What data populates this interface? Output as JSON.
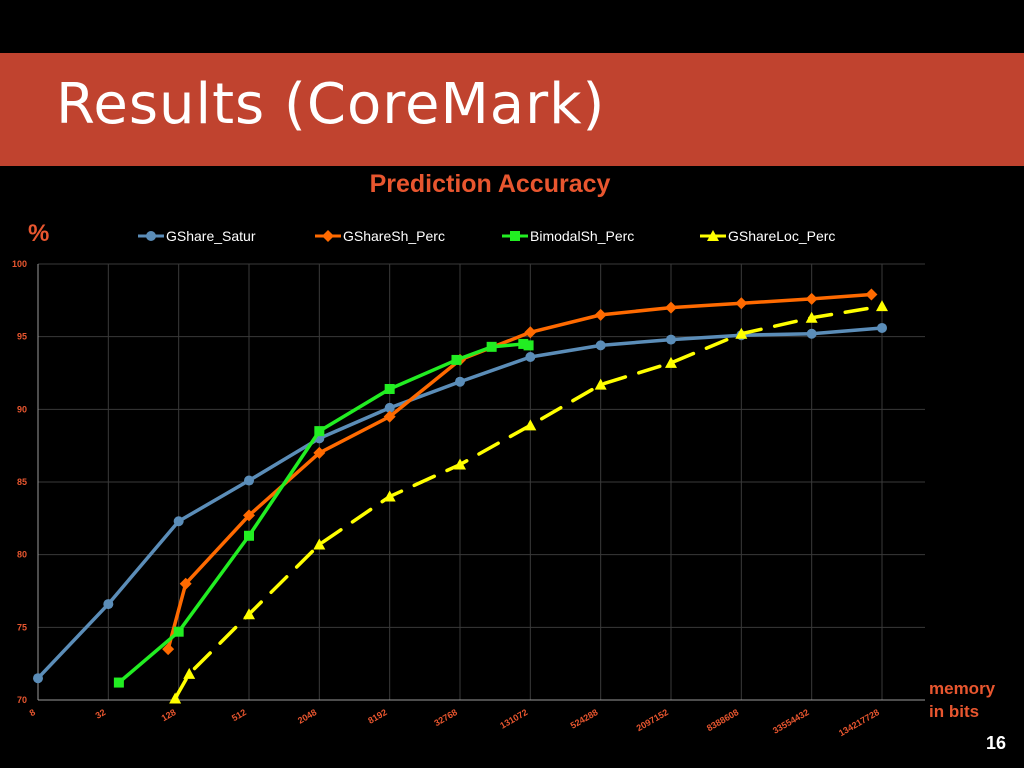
{
  "slide": {
    "title": "Results (CoreMark)",
    "page_number": "16"
  },
  "chart_data": {
    "type": "line",
    "title": "Prediction Accuracy",
    "ylabel": "%",
    "xlabel_line1": "memory",
    "xlabel_line2": "in bits",
    "x_scale": "log2",
    "ylim": [
      70,
      100
    ],
    "yticks": [
      "70",
      "75",
      "80",
      "85",
      "90",
      "95",
      "100"
    ],
    "xticks": [
      "8",
      "32",
      "128",
      "512",
      "2048",
      "8192",
      "32768",
      "131072",
      "524288",
      "2097152",
      "8388608",
      "33554432",
      "134217728"
    ],
    "grid": true,
    "legend_position": "top",
    "colors": {
      "title": "#e8562f",
      "tick_labels": "#e8562f",
      "grid": "#3a3a3a",
      "legend_text": "#ffffff"
    },
    "series": [
      {
        "name": "GShare_Satur",
        "color": "#5b8db8",
        "marker": "circle",
        "dash": false,
        "points": [
          [
            3,
            71.5
          ],
          [
            5,
            76.6
          ],
          [
            7,
            82.3
          ],
          [
            9,
            85.1
          ],
          [
            11,
            88.0
          ],
          [
            13,
            90.1
          ],
          [
            15,
            91.9
          ],
          [
            17,
            93.6
          ],
          [
            19,
            94.4
          ],
          [
            21,
            94.8
          ],
          [
            23,
            95.1
          ],
          [
            25,
            95.2
          ],
          [
            27,
            95.6
          ]
        ]
      },
      {
        "name": "GShareSh_Perc",
        "color": "#ff6a00",
        "marker": "diamond",
        "dash": false,
        "points": [
          [
            6.7,
            73.5
          ],
          [
            7.2,
            78.0
          ],
          [
            9,
            82.7
          ],
          [
            11,
            87.0
          ],
          [
            13,
            89.5
          ],
          [
            15,
            93.4
          ],
          [
            17,
            95.3
          ],
          [
            19,
            96.5
          ],
          [
            21,
            97.0
          ],
          [
            23,
            97.3
          ],
          [
            25,
            97.6
          ],
          [
            26.7,
            97.9
          ]
        ]
      },
      {
        "name": "BimodalSh_Perc",
        "color": "#22ee22",
        "marker": "square",
        "dash": false,
        "points": [
          [
            5.3,
            71.2
          ],
          [
            7,
            74.7
          ],
          [
            9,
            81.3
          ],
          [
            11,
            88.5
          ],
          [
            13,
            91.4
          ],
          [
            14.9,
            93.4
          ],
          [
            15.9,
            94.3
          ],
          [
            16.8,
            94.5
          ],
          [
            16.95,
            94.4
          ]
        ]
      },
      {
        "name": "GShareLoc_Perc",
        "color": "#ffff00",
        "marker": "triangle",
        "dash": true,
        "points": [
          [
            6.9,
            70.1
          ],
          [
            7.3,
            71.8
          ],
          [
            9,
            75.9
          ],
          [
            11,
            80.7
          ],
          [
            13,
            84.0
          ],
          [
            15,
            86.2
          ],
          [
            17,
            88.9
          ],
          [
            19,
            91.7
          ],
          [
            21,
            93.2
          ],
          [
            23,
            95.2
          ],
          [
            25,
            96.3
          ],
          [
            27,
            97.1
          ]
        ]
      }
    ]
  }
}
